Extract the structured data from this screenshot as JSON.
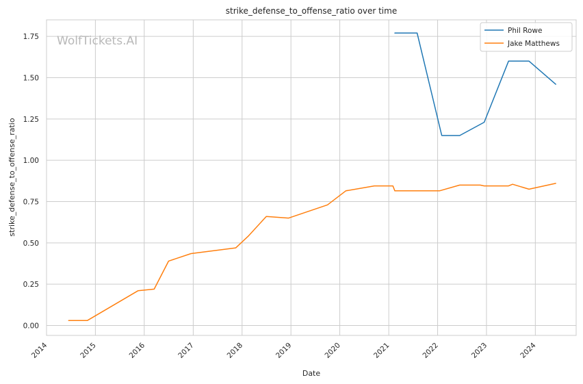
{
  "watermark": "WolfTickets.AI",
  "chart_data": {
    "type": "line",
    "title": "strike_defense_to_offense_ratio over time",
    "xlabel": "Date",
    "ylabel": "strike_defense_to_offense_ratio",
    "x_ticks": [
      "2014",
      "2015",
      "2016",
      "2017",
      "2018",
      "2019",
      "2020",
      "2021",
      "2022",
      "2023",
      "2024"
    ],
    "y_ticks": [
      "0.00",
      "0.25",
      "0.50",
      "0.75",
      "1.00",
      "1.25",
      "1.50",
      "1.75"
    ],
    "xlim": [
      "2014-01-01",
      "2024-11-01"
    ],
    "ylim": [
      -0.06,
      1.85
    ],
    "grid": true,
    "legend": "top-right",
    "series": [
      {
        "name": "Phil Rowe",
        "color": "#1f77b4",
        "points": [
          [
            "2021-02-15",
            1.77
          ],
          [
            "2021-08-01",
            1.77
          ],
          [
            "2022-02-01",
            1.15
          ],
          [
            "2022-06-15",
            1.15
          ],
          [
            "2022-12-15",
            1.23
          ],
          [
            "2023-06-15",
            1.6
          ],
          [
            "2023-11-15",
            1.6
          ],
          [
            "2024-06-01",
            1.46
          ]
        ]
      },
      {
        "name": "Jake Matthews",
        "color": "#ff7f0e",
        "points": [
          [
            "2014-06-15",
            0.03
          ],
          [
            "2014-11-01",
            0.03
          ],
          [
            "2015-11-15",
            0.21
          ],
          [
            "2016-03-15",
            0.22
          ],
          [
            "2016-07-01",
            0.39
          ],
          [
            "2016-12-15",
            0.435
          ],
          [
            "2017-11-15",
            0.47
          ],
          [
            "2018-02-15",
            0.54
          ],
          [
            "2018-07-01",
            0.66
          ],
          [
            "2018-12-15",
            0.65
          ],
          [
            "2019-10-01",
            0.73
          ],
          [
            "2020-02-15",
            0.815
          ],
          [
            "2020-09-15",
            0.845
          ],
          [
            "2021-02-01",
            0.845
          ],
          [
            "2021-02-15",
            0.815
          ],
          [
            "2022-01-15",
            0.815
          ],
          [
            "2022-06-15",
            0.85
          ],
          [
            "2022-11-15",
            0.85
          ],
          [
            "2022-12-15",
            0.845
          ],
          [
            "2023-06-15",
            0.845
          ],
          [
            "2023-07-15",
            0.855
          ],
          [
            "2023-11-15",
            0.825
          ],
          [
            "2024-06-01",
            0.86
          ]
        ]
      }
    ]
  }
}
